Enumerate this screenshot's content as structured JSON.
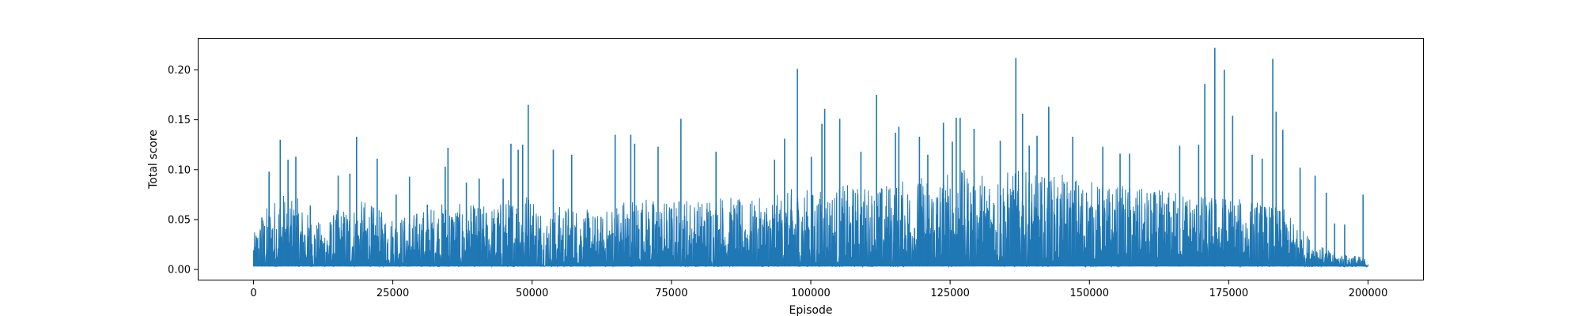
{
  "chart_data": {
    "type": "line",
    "title": "",
    "xlabel": "Episode",
    "ylabel": "Total score",
    "xlim": [
      -10000,
      210000
    ],
    "ylim": [
      -0.011,
      0.232
    ],
    "xticks": [
      0,
      25000,
      50000,
      75000,
      100000,
      125000,
      150000,
      175000,
      200000
    ],
    "xtick_labels": [
      "0",
      "25000",
      "50000",
      "75000",
      "100000",
      "125000",
      "150000",
      "175000",
      "200000"
    ],
    "yticks": [
      0.0,
      0.05,
      0.1,
      0.15,
      0.2
    ],
    "ytick_labels": [
      "0.00",
      "0.05",
      "0.10",
      "0.15",
      "0.20"
    ],
    "grid": false,
    "series": [
      {
        "color": "#1f77b4",
        "baseline": 0.003,
        "x_range": [
          0,
          200000
        ],
        "envelope": {
          "description": "upper envelope of the noisy per-episode score (sampled every 2500 episodes)",
          "x": [
            0,
            2500,
            5000,
            7500,
            10000,
            12500,
            15000,
            17500,
            20000,
            22500,
            25000,
            27500,
            30000,
            32500,
            35000,
            37500,
            40000,
            42500,
            45000,
            47500,
            50000,
            52500,
            55000,
            57500,
            60000,
            62500,
            65000,
            67500,
            70000,
            72500,
            75000,
            77500,
            80000,
            82500,
            85000,
            87500,
            90000,
            92500,
            95000,
            97500,
            100000,
            102500,
            105000,
            107500,
            110000,
            112500,
            115000,
            117500,
            120000,
            122500,
            125000,
            127500,
            130000,
            132500,
            135000,
            137500,
            140000,
            142500,
            145000,
            147500,
            150000,
            152500,
            155000,
            157500,
            160000,
            162500,
            165000,
            167500,
            170000,
            172500,
            175000,
            177500,
            180000,
            182500,
            185000,
            187500,
            190000,
            192500,
            195000,
            197500,
            200000
          ],
          "y": [
            0.035,
            0.065,
            0.08,
            0.075,
            0.055,
            0.045,
            0.06,
            0.065,
            0.07,
            0.06,
            0.055,
            0.055,
            0.06,
            0.065,
            0.07,
            0.065,
            0.065,
            0.065,
            0.07,
            0.08,
            0.08,
            0.055,
            0.065,
            0.065,
            0.06,
            0.055,
            0.07,
            0.075,
            0.075,
            0.07,
            0.07,
            0.075,
            0.07,
            0.08,
            0.075,
            0.07,
            0.07,
            0.075,
            0.075,
            0.085,
            0.08,
            0.08,
            0.085,
            0.085,
            0.085,
            0.085,
            0.09,
            0.09,
            0.095,
            0.095,
            0.1,
            0.1,
            0.1,
            0.1,
            0.1,
            0.1,
            0.095,
            0.095,
            0.095,
            0.095,
            0.09,
            0.085,
            0.085,
            0.085,
            0.08,
            0.08,
            0.08,
            0.08,
            0.075,
            0.075,
            0.075,
            0.07,
            0.07,
            0.065,
            0.06,
            0.045,
            0.03,
            0.02,
            0.015,
            0.015,
            0.01
          ]
        },
        "spikes": [
          {
            "x": 1500,
            "y": 0.052
          },
          {
            "x": 2800,
            "y": 0.098
          },
          {
            "x": 4800,
            "y": 0.13
          },
          {
            "x": 6200,
            "y": 0.11
          },
          {
            "x": 7600,
            "y": 0.113
          },
          {
            "x": 10200,
            "y": 0.064
          },
          {
            "x": 15200,
            "y": 0.094
          },
          {
            "x": 17300,
            "y": 0.096
          },
          {
            "x": 18500,
            "y": 0.133
          },
          {
            "x": 22200,
            "y": 0.111
          },
          {
            "x": 25600,
            "y": 0.075
          },
          {
            "x": 28000,
            "y": 0.093
          },
          {
            "x": 31200,
            "y": 0.065
          },
          {
            "x": 34400,
            "y": 0.103
          },
          {
            "x": 34900,
            "y": 0.122
          },
          {
            "x": 38200,
            "y": 0.087
          },
          {
            "x": 40500,
            "y": 0.091
          },
          {
            "x": 44800,
            "y": 0.091
          },
          {
            "x": 46200,
            "y": 0.126
          },
          {
            "x": 47500,
            "y": 0.12
          },
          {
            "x": 48300,
            "y": 0.125
          },
          {
            "x": 49300,
            "y": 0.165
          },
          {
            "x": 53800,
            "y": 0.12
          },
          {
            "x": 57100,
            "y": 0.115
          },
          {
            "x": 64900,
            "y": 0.135
          },
          {
            "x": 67700,
            "y": 0.135
          },
          {
            "x": 68400,
            "y": 0.126
          },
          {
            "x": 72600,
            "y": 0.123
          },
          {
            "x": 76700,
            "y": 0.151
          },
          {
            "x": 83000,
            "y": 0.118
          },
          {
            "x": 93500,
            "y": 0.11
          },
          {
            "x": 95300,
            "y": 0.131
          },
          {
            "x": 97600,
            "y": 0.201
          },
          {
            "x": 100100,
            "y": 0.113
          },
          {
            "x": 102000,
            "y": 0.146
          },
          {
            "x": 102500,
            "y": 0.161
          },
          {
            "x": 105200,
            "y": 0.151
          },
          {
            "x": 109000,
            "y": 0.118
          },
          {
            "x": 111800,
            "y": 0.175
          },
          {
            "x": 115200,
            "y": 0.137
          },
          {
            "x": 115800,
            "y": 0.143
          },
          {
            "x": 119500,
            "y": 0.133
          },
          {
            "x": 121000,
            "y": 0.115
          },
          {
            "x": 123800,
            "y": 0.147
          },
          {
            "x": 125400,
            "y": 0.128
          },
          {
            "x": 126100,
            "y": 0.152
          },
          {
            "x": 126800,
            "y": 0.152
          },
          {
            "x": 129300,
            "y": 0.141
          },
          {
            "x": 134000,
            "y": 0.129
          },
          {
            "x": 136800,
            "y": 0.212
          },
          {
            "x": 138000,
            "y": 0.156
          },
          {
            "x": 139200,
            "y": 0.124
          },
          {
            "x": 140600,
            "y": 0.134
          },
          {
            "x": 142700,
            "y": 0.163
          },
          {
            "x": 147000,
            "y": 0.133
          },
          {
            "x": 152400,
            "y": 0.123
          },
          {
            "x": 155500,
            "y": 0.116
          },
          {
            "x": 157200,
            "y": 0.116
          },
          {
            "x": 166200,
            "y": 0.124
          },
          {
            "x": 169600,
            "y": 0.125
          },
          {
            "x": 170700,
            "y": 0.186
          },
          {
            "x": 172500,
            "y": 0.222
          },
          {
            "x": 174200,
            "y": 0.2
          },
          {
            "x": 175700,
            "y": 0.154
          },
          {
            "x": 179200,
            "y": 0.115
          },
          {
            "x": 181000,
            "y": 0.111
          },
          {
            "x": 182900,
            "y": 0.211
          },
          {
            "x": 183500,
            "y": 0.158
          },
          {
            "x": 184700,
            "y": 0.14
          },
          {
            "x": 187800,
            "y": 0.102
          },
          {
            "x": 190500,
            "y": 0.094
          },
          {
            "x": 192500,
            "y": 0.077
          },
          {
            "x": 194000,
            "y": 0.046
          },
          {
            "x": 195800,
            "y": 0.045
          },
          {
            "x": 199100,
            "y": 0.075
          }
        ]
      }
    ]
  }
}
